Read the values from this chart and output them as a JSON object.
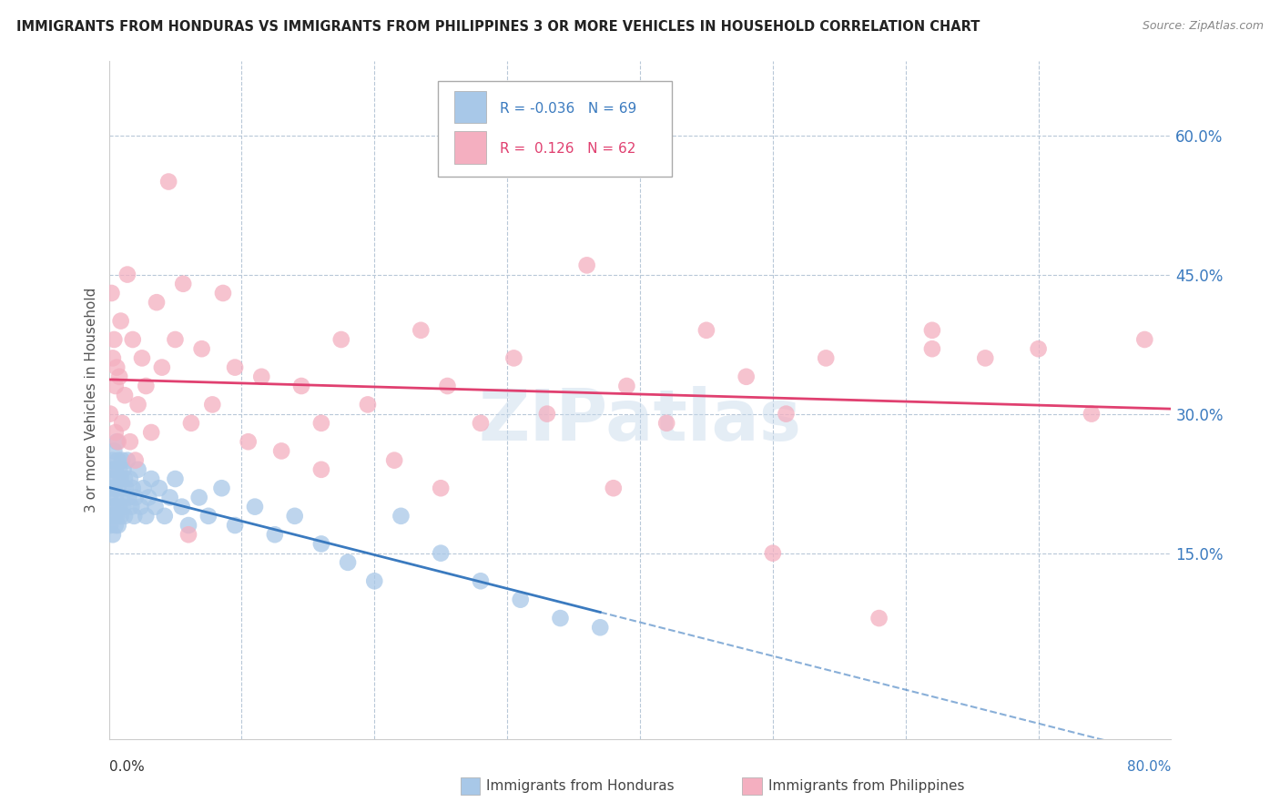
{
  "title": "IMMIGRANTS FROM HONDURAS VS IMMIGRANTS FROM PHILIPPINES 3 OR MORE VEHICLES IN HOUSEHOLD CORRELATION CHART",
  "source": "Source: ZipAtlas.com",
  "ylabel": "3 or more Vehicles in Household",
  "right_yticks": [
    "15.0%",
    "30.0%",
    "45.0%",
    "60.0%"
  ],
  "right_ytick_vals": [
    0.15,
    0.3,
    0.45,
    0.6
  ],
  "legend_label_blue": "Immigrants from Honduras",
  "legend_label_pink": "Immigrants from Philippines",
  "R_blue": -0.036,
  "N_blue": 69,
  "R_pink": 0.126,
  "N_pink": 62,
  "color_blue": "#a8c8e8",
  "color_pink": "#f4afc0",
  "line_color_blue": "#3a7abf",
  "line_color_pink": "#e04070",
  "watermark": "ZIPatlas",
  "xlim": [
    0.0,
    0.8
  ],
  "ylim": [
    -0.05,
    0.68
  ],
  "blue_x": [
    0.001,
    0.001,
    0.002,
    0.002,
    0.002,
    0.003,
    0.003,
    0.003,
    0.003,
    0.004,
    0.004,
    0.004,
    0.005,
    0.005,
    0.005,
    0.005,
    0.006,
    0.006,
    0.006,
    0.007,
    0.007,
    0.007,
    0.008,
    0.008,
    0.009,
    0.009,
    0.01,
    0.01,
    0.011,
    0.011,
    0.012,
    0.012,
    0.013,
    0.014,
    0.015,
    0.016,
    0.017,
    0.018,
    0.019,
    0.02,
    0.022,
    0.024,
    0.026,
    0.028,
    0.03,
    0.032,
    0.035,
    0.038,
    0.042,
    0.046,
    0.05,
    0.055,
    0.06,
    0.068,
    0.075,
    0.085,
    0.095,
    0.11,
    0.125,
    0.14,
    0.16,
    0.18,
    0.2,
    0.22,
    0.25,
    0.28,
    0.31,
    0.34,
    0.37
  ],
  "blue_y": [
    0.21,
    0.18,
    0.23,
    0.19,
    0.22,
    0.25,
    0.2,
    0.17,
    0.24,
    0.22,
    0.19,
    0.26,
    0.21,
    0.18,
    0.24,
    0.2,
    0.23,
    0.19,
    0.27,
    0.22,
    0.25,
    0.18,
    0.24,
    0.2,
    0.23,
    0.19,
    0.25,
    0.21,
    0.24,
    0.2,
    0.23,
    0.19,
    0.22,
    0.25,
    0.21,
    0.23,
    0.2,
    0.22,
    0.19,
    0.21,
    0.24,
    0.2,
    0.22,
    0.19,
    0.21,
    0.23,
    0.2,
    0.22,
    0.19,
    0.21,
    0.23,
    0.2,
    0.18,
    0.21,
    0.19,
    0.22,
    0.18,
    0.2,
    0.17,
    0.19,
    0.16,
    0.14,
    0.12,
    0.19,
    0.15,
    0.12,
    0.1,
    0.08,
    0.07
  ],
  "pink_x": [
    0.001,
    0.002,
    0.003,
    0.004,
    0.005,
    0.005,
    0.006,
    0.007,
    0.008,
    0.009,
    0.01,
    0.012,
    0.014,
    0.016,
    0.018,
    0.02,
    0.022,
    0.025,
    0.028,
    0.032,
    0.036,
    0.04,
    0.045,
    0.05,
    0.056,
    0.062,
    0.07,
    0.078,
    0.086,
    0.095,
    0.105,
    0.115,
    0.13,
    0.145,
    0.16,
    0.175,
    0.195,
    0.215,
    0.235,
    0.255,
    0.28,
    0.305,
    0.33,
    0.36,
    0.39,
    0.42,
    0.45,
    0.48,
    0.51,
    0.54,
    0.58,
    0.62,
    0.66,
    0.7,
    0.74,
    0.78,
    0.16,
    0.06,
    0.25,
    0.38,
    0.5,
    0.62
  ],
  "pink_y": [
    0.3,
    0.43,
    0.36,
    0.38,
    0.28,
    0.33,
    0.35,
    0.27,
    0.34,
    0.4,
    0.29,
    0.32,
    0.45,
    0.27,
    0.38,
    0.25,
    0.31,
    0.36,
    0.33,
    0.28,
    0.42,
    0.35,
    0.55,
    0.38,
    0.44,
    0.29,
    0.37,
    0.31,
    0.43,
    0.35,
    0.27,
    0.34,
    0.26,
    0.33,
    0.29,
    0.38,
    0.31,
    0.25,
    0.39,
    0.33,
    0.29,
    0.36,
    0.3,
    0.46,
    0.33,
    0.29,
    0.39,
    0.34,
    0.3,
    0.36,
    0.08,
    0.39,
    0.36,
    0.37,
    0.3,
    0.38,
    0.24,
    0.17,
    0.22,
    0.22,
    0.15,
    0.37
  ]
}
